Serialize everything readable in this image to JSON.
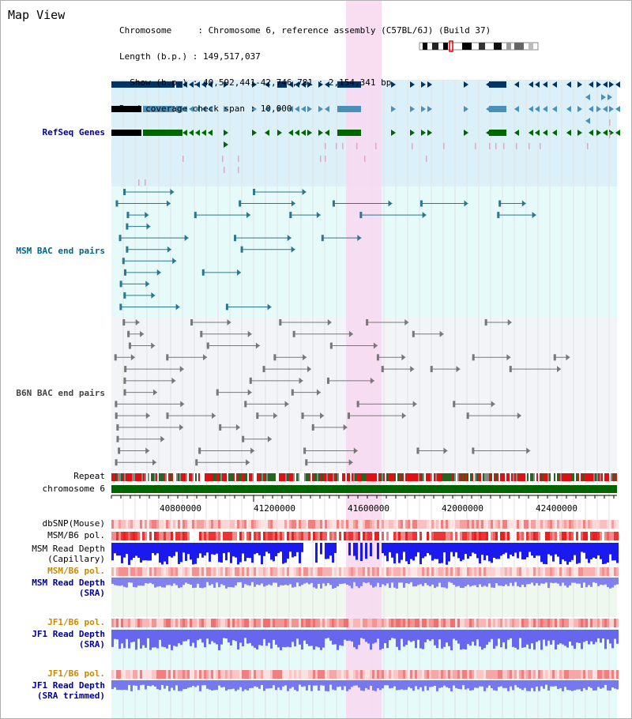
{
  "header": {
    "title": "Map View",
    "info_lines": [
      "Chromosome     : Chromosome 6, reference assembly (C57BL/6J) (Build 37)",
      "Length (b.p.) : 149,517,037",
      "  Show (b.p.) : 40,592,441-42,746,781 : 2,154,341 bp",
      "Read coverage check span : 10,000"
    ]
  },
  "tracks": {
    "refseq": "RefSeq Genes",
    "msm_bac": "MSM BAC end pairs",
    "b6n_bac": "B6N BAC end pairs",
    "repeat": "Repeat",
    "chromosome": "chromosome 6",
    "dbsnp": "dbSNP(Mouse)",
    "msm_b6_pol": "MSM/B6 pol.",
    "msm_read_depth_cap_1": "MSM Read Depth",
    "msm_read_depth_cap_2": "(Capillary)",
    "msm_b6_pol_2": "MSM/B6 pol.",
    "msm_read_depth_sra_1": "MSM Read Depth",
    "msm_read_depth_sra_2": "(SRA)",
    "jf1_b6_pol": "JF1/B6 pol.",
    "jf1_read_depth_1": "JF1 Read Depth",
    "jf1_read_depth_2": "(SRA)",
    "jf1_b6_pol_2": "JF1/B6 pol.",
    "jf1_read_depth_trim_1": "JF1 Read Depth",
    "jf1_read_depth_trim_2": "(SRA trimmed)"
  },
  "axis": {
    "ticks": [
      "40800000",
      "41200000",
      "41600000",
      "42000000",
      "42400000"
    ]
  },
  "colors": {
    "highlight": "#f8d8f0",
    "refseq_bg": "#dcf0fa",
    "msm_bg": "#e6fafa",
    "b6n_bg": "#f2f4f8",
    "navy": "#003366",
    "steel": "#4a90b8",
    "green": "#006600",
    "teal": "#2a7890",
    "chrom_green": "#006400",
    "depth_blue": "#1a1aee",
    "depth_light": "#6666ee"
  }
}
